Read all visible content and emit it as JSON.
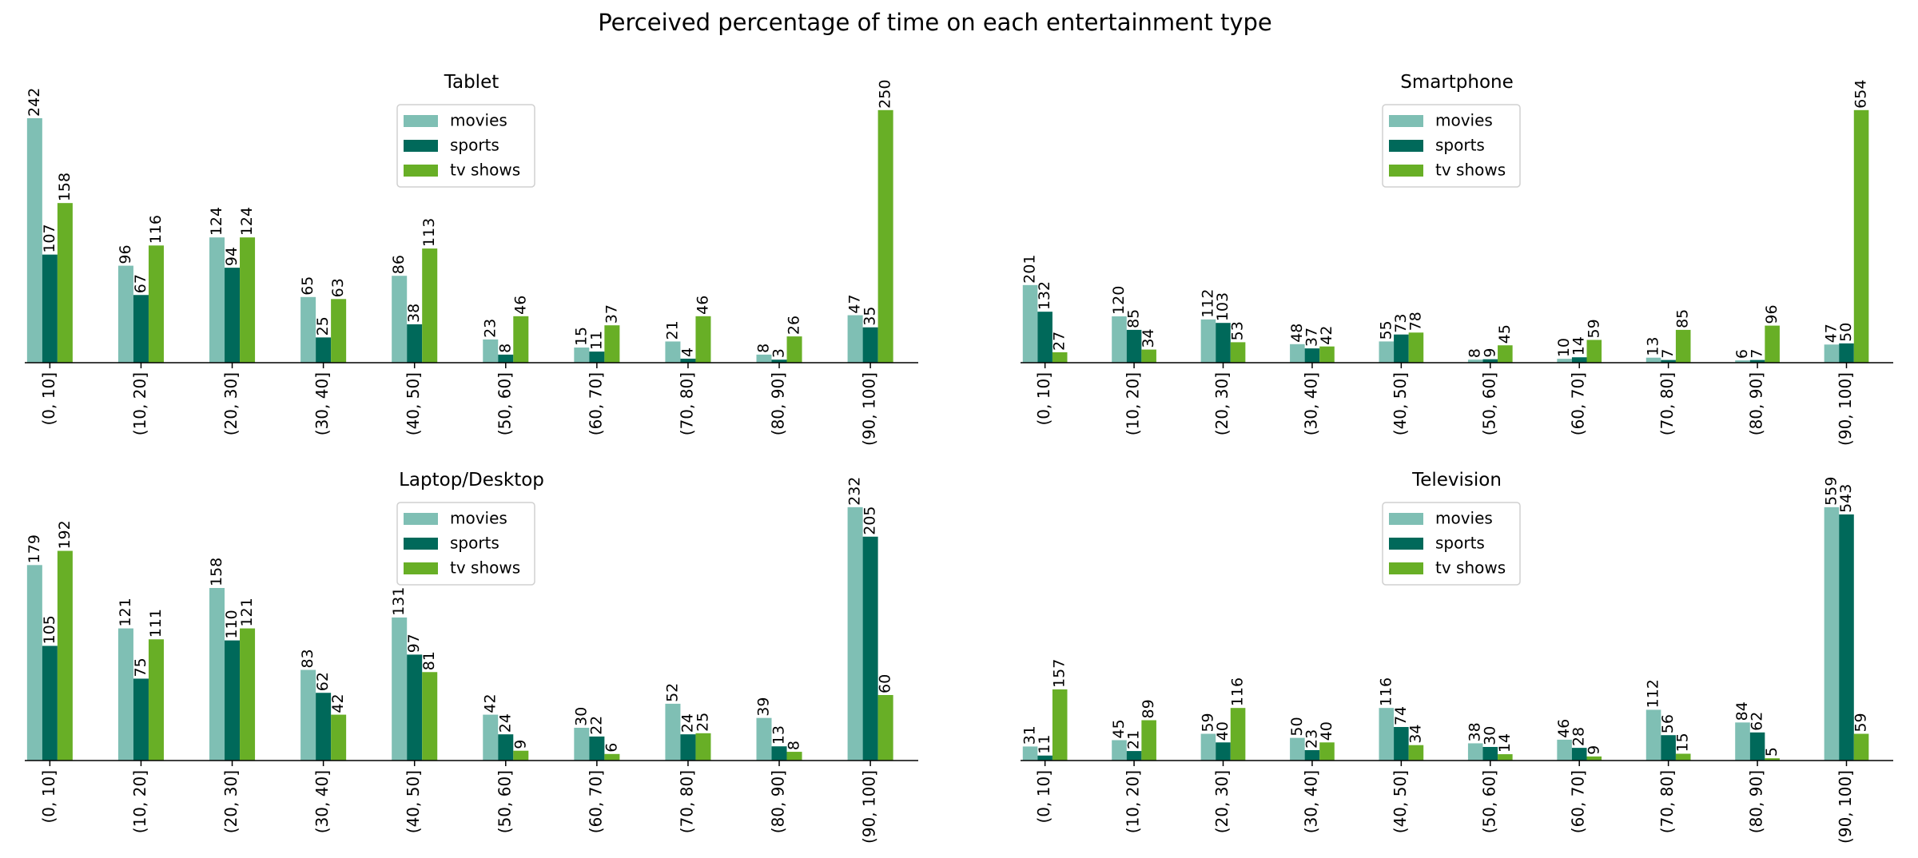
{
  "title": "Perceived percentage of time on each entertainment type",
  "colors": {
    "movies": "#7fbfb4",
    "sports": "#00695a",
    "tv shows": "#68af26"
  },
  "chart_data": [
    {
      "type": "bar",
      "title": "Tablet",
      "categories": [
        "(0, 10]",
        "(10, 20]",
        "(20, 30]",
        "(30, 40]",
        "(40, 50]",
        "(50, 60]",
        "(60, 70]",
        "(70, 80]",
        "(80, 90]",
        "(90, 100]"
      ],
      "series": [
        {
          "name": "movies",
          "values": [
            242,
            96,
            124,
            65,
            86,
            23,
            15,
            21,
            8,
            47
          ]
        },
        {
          "name": "sports",
          "values": [
            107,
            67,
            94,
            25,
            38,
            8,
            11,
            4,
            3,
            35
          ]
        },
        {
          "name": "tv shows",
          "values": [
            158,
            116,
            124,
            63,
            113,
            46,
            37,
            46,
            26,
            250
          ]
        }
      ],
      "legend": "upper center",
      "grid": false,
      "y_axis_visible": false
    },
    {
      "type": "bar",
      "title": "Smartphone",
      "categories": [
        "(0, 10]",
        "(10, 20]",
        "(20, 30]",
        "(30, 40]",
        "(40, 50]",
        "(50, 60]",
        "(60, 70]",
        "(70, 80]",
        "(80, 90]",
        "(90, 100]"
      ],
      "series": [
        {
          "name": "movies",
          "values": [
            201,
            120,
            112,
            48,
            55,
            8,
            10,
            13,
            6,
            47
          ]
        },
        {
          "name": "sports",
          "values": [
            132,
            85,
            103,
            37,
            73,
            9,
            14,
            7,
            7,
            50
          ]
        },
        {
          "name": "tv shows",
          "values": [
            27,
            34,
            53,
            42,
            78,
            45,
            59,
            85,
            96,
            654
          ]
        }
      ],
      "legend": "upper center",
      "grid": false,
      "y_axis_visible": false
    },
    {
      "type": "bar",
      "title": "Laptop/Desktop",
      "categories": [
        "(0, 10]",
        "(10, 20]",
        "(20, 30]",
        "(30, 40]",
        "(40, 50]",
        "(50, 60]",
        "(60, 70]",
        "(70, 80]",
        "(80, 90]",
        "(90, 100]"
      ],
      "series": [
        {
          "name": "movies",
          "values": [
            179,
            121,
            158,
            83,
            131,
            42,
            30,
            52,
            39,
            232
          ]
        },
        {
          "name": "sports",
          "values": [
            105,
            75,
            110,
            62,
            97,
            24,
            22,
            24,
            13,
            205
          ]
        },
        {
          "name": "tv shows",
          "values": [
            192,
            111,
            121,
            42,
            81,
            9,
            6,
            25,
            8,
            60
          ]
        }
      ],
      "legend": "upper center",
      "grid": false,
      "y_axis_visible": false
    },
    {
      "type": "bar",
      "title": "Television",
      "categories": [
        "(0, 10]",
        "(10, 20]",
        "(20, 30]",
        "(30, 40]",
        "(40, 50]",
        "(50, 60]",
        "(60, 70]",
        "(70, 80]",
        "(80, 90]",
        "(90, 100]"
      ],
      "series": [
        {
          "name": "movies",
          "values": [
            31,
            45,
            59,
            50,
            116,
            38,
            46,
            112,
            84,
            559
          ]
        },
        {
          "name": "sports",
          "values": [
            11,
            21,
            40,
            23,
            74,
            30,
            28,
            56,
            62,
            543
          ]
        },
        {
          "name": "tv shows",
          "values": [
            157,
            89,
            116,
            40,
            34,
            14,
            9,
            15,
            5,
            59
          ]
        }
      ],
      "legend": "upper center",
      "grid": false,
      "y_axis_visible": false
    }
  ]
}
